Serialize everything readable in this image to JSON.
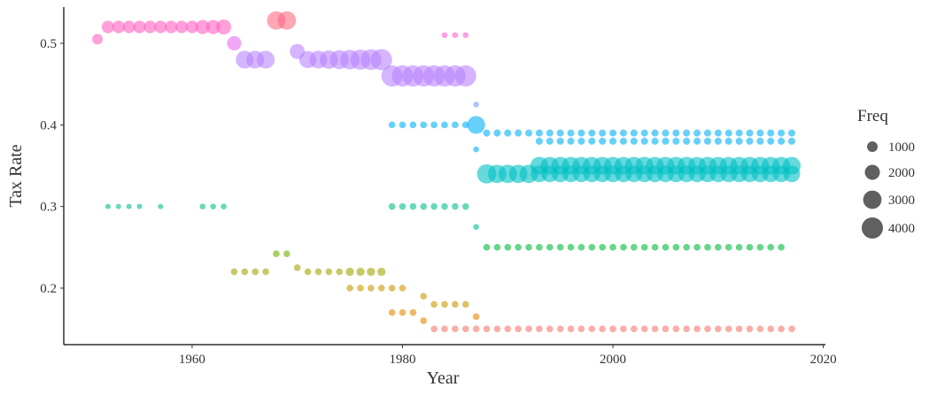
{
  "chart_data": {
    "type": "scatter",
    "x_label": "Year",
    "y_label": "Tax Rate",
    "xlim": [
      1947.8,
      2020.2
    ],
    "ylim": [
      0.1307,
      0.5444
    ],
    "xticks": [
      1960,
      1980,
      2000,
      2020
    ],
    "yticks": [
      0.2,
      0.3,
      0.4,
      0.5
    ],
    "size_legend": {
      "title": "Freq",
      "values": [
        1000,
        2000,
        3000,
        4000
      ]
    },
    "series": [
      {
        "color": "#F8766D",
        "x": [
          1983,
          1984,
          1985,
          1986,
          1987,
          1988,
          1989,
          1990,
          1991,
          1992,
          1993,
          1994,
          1995,
          1996,
          1997,
          1998,
          1999,
          2000,
          2001,
          2002,
          2003,
          2004,
          2005,
          2006,
          2007,
          2008,
          2009,
          2010,
          2011,
          2012,
          2013,
          2014,
          2015,
          2016,
          2017
        ],
        "values": [
          0.15,
          0.15,
          0.15,
          0.15,
          0.15,
          0.15,
          0.15,
          0.15,
          0.15,
          0.15,
          0.15,
          0.15,
          0.15,
          0.15,
          0.15,
          0.15,
          0.15,
          0.15,
          0.15,
          0.15,
          0.15,
          0.15,
          0.15,
          0.15,
          0.15,
          0.15,
          0.15,
          0.15,
          0.15,
          0.15,
          0.15,
          0.15,
          0.15,
          0.15,
          0.15
        ],
        "sizes": [
          400,
          400,
          400,
          400,
          400,
          400,
          400,
          400,
          400,
          400,
          400,
          400,
          400,
          400,
          400,
          400,
          400,
          400,
          400,
          400,
          400,
          400,
          400,
          400,
          400,
          400,
          400,
          400,
          400,
          400,
          400,
          400,
          400,
          400,
          400
        ]
      },
      {
        "color": "#E58700",
        "x": [
          1979,
          1980,
          1981,
          1982,
          1987
        ],
        "values": [
          0.17,
          0.17,
          0.17,
          0.16,
          0.165
        ],
        "sizes": [
          400,
          400,
          400,
          400,
          400
        ]
      },
      {
        "color": "#C99800",
        "x": [
          1975,
          1976,
          1977,
          1978,
          1979,
          1980,
          1982,
          1983,
          1984,
          1985,
          1986
        ],
        "values": [
          0.2,
          0.2,
          0.2,
          0.2,
          0.2,
          0.2,
          0.19,
          0.18,
          0.18,
          0.18,
          0.18
        ],
        "sizes": [
          400,
          400,
          400,
          400,
          400,
          400,
          400,
          400,
          400,
          400,
          400
        ]
      },
      {
        "color": "#A3A500",
        "x": [
          1964,
          1965,
          1966,
          1967,
          1970,
          1971,
          1972,
          1973,
          1974,
          1975,
          1976,
          1977,
          1978
        ],
        "values": [
          0.22,
          0.22,
          0.22,
          0.22,
          0.225,
          0.22,
          0.22,
          0.22,
          0.22,
          0.22,
          0.22,
          0.22,
          0.22
        ],
        "sizes": [
          400,
          400,
          400,
          400,
          400,
          400,
          400,
          400,
          400,
          600,
          600,
          600,
          600
        ]
      },
      {
        "color": "#6BB100",
        "x": [
          1968,
          1969
        ],
        "values": [
          0.242,
          0.242
        ],
        "sizes": [
          400,
          400
        ]
      },
      {
        "color": "#00BA38",
        "x": [
          1988,
          1989,
          1990,
          1991,
          1992,
          1993,
          1994,
          1995,
          1996,
          1997,
          1998,
          1999,
          2000,
          2001,
          2002,
          2003,
          2004,
          2005,
          2006,
          2007,
          2008,
          2009,
          2010,
          2011,
          2012,
          2013,
          2014,
          2015,
          2016
        ],
        "values": [
          0.25,
          0.25,
          0.25,
          0.25,
          0.25,
          0.25,
          0.25,
          0.25,
          0.25,
          0.25,
          0.25,
          0.25,
          0.25,
          0.25,
          0.25,
          0.25,
          0.25,
          0.25,
          0.25,
          0.25,
          0.25,
          0.25,
          0.25,
          0.25,
          0.25,
          0.25,
          0.25,
          0.25,
          0.25
        ],
        "sizes": [
          400,
          400,
          400,
          400,
          400,
          400,
          400,
          400,
          400,
          400,
          400,
          400,
          400,
          400,
          400,
          400,
          400,
          400,
          400,
          400,
          400,
          400,
          400,
          400,
          400,
          400,
          400,
          400,
          400
        ]
      },
      {
        "color": "#00C08B",
        "x": [
          1952,
          1953,
          1954,
          1955,
          1957,
          1961,
          1962,
          1963,
          1979,
          1980,
          1981,
          1982,
          1983,
          1984,
          1985,
          1986,
          1987
        ],
        "values": [
          0.3,
          0.3,
          0.3,
          0.3,
          0.3,
          0.3,
          0.3,
          0.3,
          0.3,
          0.3,
          0.3,
          0.3,
          0.3,
          0.3,
          0.3,
          0.3,
          0.275
        ],
        "sizes": [
          250,
          250,
          250,
          250,
          250,
          300,
          300,
          300,
          400,
          400,
          400,
          400,
          400,
          400,
          400,
          400,
          300
        ]
      },
      {
        "color": "#00BFC4",
        "x": [
          1988,
          1989,
          1990,
          1991,
          1992,
          1993,
          1994,
          1995,
          1996,
          1997,
          1998,
          1999,
          2000,
          2001,
          2002,
          2003,
          2004,
          2005,
          2006,
          2007,
          2008,
          2009,
          2010,
          2011,
          2012,
          2013,
          2014,
          2015,
          2016,
          2017,
          1993,
          1994,
          1995,
          1996,
          1997,
          1998,
          1999,
          2000,
          2001,
          2002,
          2003,
          2004,
          2005,
          2006,
          2007,
          2008,
          2009,
          2010,
          2011,
          2012,
          2013,
          2014,
          2015,
          2016,
          2017
        ],
        "values": [
          0.34,
          0.34,
          0.34,
          0.34,
          0.34,
          0.34,
          0.34,
          0.34,
          0.34,
          0.34,
          0.34,
          0.34,
          0.34,
          0.34,
          0.34,
          0.34,
          0.34,
          0.34,
          0.34,
          0.34,
          0.34,
          0.34,
          0.34,
          0.34,
          0.34,
          0.34,
          0.34,
          0.34,
          0.34,
          0.34,
          0.35,
          0.35,
          0.35,
          0.35,
          0.35,
          0.35,
          0.35,
          0.35,
          0.35,
          0.35,
          0.35,
          0.35,
          0.35,
          0.35,
          0.35,
          0.35,
          0.35,
          0.35,
          0.35,
          0.35,
          0.35,
          0.35,
          0.35,
          0.35,
          0.35
        ],
        "sizes": [
          3300,
          3000,
          3000,
          3000,
          3000,
          2500,
          2500,
          2500,
          2500,
          2500,
          2500,
          2500,
          2500,
          2500,
          2500,
          2500,
          2500,
          2500,
          2500,
          2500,
          2500,
          2500,
          2500,
          2500,
          2500,
          2500,
          2500,
          2500,
          2500,
          2500,
          2800,
          2800,
          2800,
          2800,
          2800,
          2800,
          2800,
          2800,
          2800,
          2800,
          2800,
          2800,
          2800,
          2800,
          2800,
          2800,
          2800,
          2800,
          2800,
          2800,
          2800,
          2800,
          2800,
          2800,
          2800
        ]
      },
      {
        "color": "#00B0F6",
        "x": [
          1979,
          1980,
          1981,
          1982,
          1983,
          1984,
          1985,
          1986,
          1987,
          1987,
          1988,
          1989,
          1990,
          1991,
          1992,
          1993,
          1994,
          1995,
          1996,
          1997,
          1998,
          1999,
          2000,
          2001,
          2002,
          2003,
          2004,
          2005,
          2006,
          2007,
          2008,
          2009,
          2010,
          2011,
          2012,
          2013,
          2014,
          2015,
          2016,
          2017,
          1993,
          1994,
          1995,
          1996,
          1997,
          1998,
          1999,
          2000,
          2001,
          2002,
          2003,
          2004,
          2005,
          2006,
          2007,
          2008,
          2009,
          2010,
          2011,
          2012,
          2013,
          2014,
          2015,
          2016,
          2017
        ],
        "values": [
          0.4,
          0.4,
          0.4,
          0.4,
          0.4,
          0.4,
          0.4,
          0.4,
          0.4,
          0.37,
          0.39,
          0.39,
          0.39,
          0.39,
          0.39,
          0.39,
          0.39,
          0.39,
          0.39,
          0.39,
          0.39,
          0.39,
          0.39,
          0.39,
          0.39,
          0.39,
          0.39,
          0.39,
          0.39,
          0.39,
          0.39,
          0.39,
          0.39,
          0.39,
          0.39,
          0.39,
          0.39,
          0.39,
          0.39,
          0.39,
          0.38,
          0.38,
          0.38,
          0.38,
          0.38,
          0.38,
          0.38,
          0.38,
          0.38,
          0.38,
          0.38,
          0.38,
          0.38,
          0.38,
          0.38,
          0.38,
          0.38,
          0.38,
          0.38,
          0.38,
          0.38,
          0.38,
          0.38,
          0.38,
          0.38
        ],
        "sizes": [
          400,
          400,
          400,
          400,
          400,
          400,
          400,
          400,
          2800,
          300,
          450,
          450,
          450,
          450,
          450,
          450,
          450,
          450,
          450,
          450,
          450,
          450,
          450,
          450,
          450,
          450,
          450,
          450,
          450,
          450,
          450,
          450,
          450,
          450,
          450,
          450,
          450,
          450,
          450,
          450,
          450,
          450,
          450,
          450,
          450,
          450,
          450,
          450,
          450,
          450,
          450,
          450,
          450,
          450,
          450,
          450,
          450,
          450,
          450,
          450,
          450,
          450,
          450,
          450,
          450
        ]
      },
      {
        "color": "#7F96FF",
        "x": [
          1987
        ],
        "values": [
          0.425
        ],
        "sizes": [
          300
        ]
      },
      {
        "color": "#B983FF",
        "x": [
          1979,
          1980,
          1981,
          1982,
          1983,
          1984,
          1985,
          1986,
          1965,
          1966,
          1967,
          1971,
          1972,
          1973,
          1974,
          1975,
          1976,
          1977,
          1978,
          1970
        ],
        "values": [
          0.46,
          0.46,
          0.46,
          0.46,
          0.46,
          0.46,
          0.46,
          0.46,
          0.48,
          0.48,
          0.48,
          0.48,
          0.48,
          0.48,
          0.48,
          0.48,
          0.48,
          0.48,
          0.48,
          0.49
        ],
        "sizes": [
          4000,
          4000,
          4000,
          4000,
          4000,
          4000,
          4000,
          4000,
          2800,
          2800,
          2800,
          2600,
          2800,
          3000,
          3200,
          3400,
          3600,
          3800,
          4000,
          2000
        ]
      },
      {
        "color": "#E76BF3",
        "x": [
          1964
        ],
        "values": [
          0.5
        ],
        "sizes": [
          1800
        ]
      },
      {
        "color": "#FF61C3",
        "x": [
          1951,
          1952,
          1953,
          1954,
          1955,
          1956,
          1957,
          1958,
          1959,
          1960,
          1961,
          1962,
          1963,
          1984,
          1985,
          1986
        ],
        "values": [
          0.505,
          0.52,
          0.52,
          0.52,
          0.52,
          0.52,
          0.52,
          0.52,
          0.52,
          0.52,
          0.52,
          0.52,
          0.52,
          0.51,
          0.51,
          0.51
        ],
        "sizes": [
          1000,
          1400,
          1400,
          1400,
          1400,
          1400,
          1400,
          1400,
          1400,
          1400,
          1800,
          1800,
          2000,
          300,
          300,
          300
        ]
      },
      {
        "color": "#FB6A83",
        "x": [
          1968,
          1969
        ],
        "values": [
          0.528,
          0.528
        ],
        "sizes": [
          3000,
          3000
        ]
      }
    ]
  }
}
